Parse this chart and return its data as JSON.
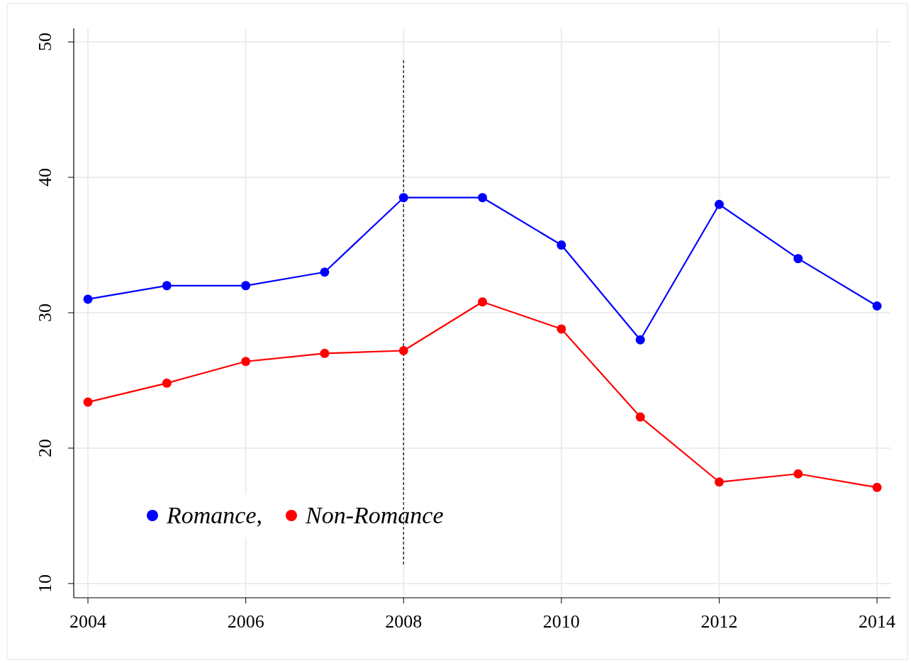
{
  "chart_data": {
    "type": "line",
    "x": [
      2004,
      2005,
      2006,
      2007,
      2008,
      2009,
      2010,
      2011,
      2012,
      2013,
      2014
    ],
    "series": [
      {
        "name": "Romance,",
        "color": "#0000ff",
        "values": [
          31.0,
          32.0,
          32.0,
          33.0,
          38.5,
          38.5,
          35.0,
          28.0,
          38.0,
          34.0,
          30.5
        ]
      },
      {
        "name": "Non-Romance",
        "color": "#ff0000",
        "values": [
          23.4,
          24.8,
          26.4,
          27.0,
          27.2,
          30.8,
          28.8,
          22.3,
          17.5,
          18.1,
          17.1
        ]
      }
    ],
    "xlim": [
      2003.82,
      2014.17
    ],
    "ylim": [
      8.95,
      51.0
    ],
    "xticks": [
      2004,
      2006,
      2008,
      2010,
      2012,
      2014
    ],
    "yticks": [
      10,
      20,
      30,
      40,
      50
    ],
    "ref_lines": [
      {
        "axis": "x",
        "value": 2008,
        "color": "#000000",
        "line_style": "dashed"
      }
    ],
    "grid": true,
    "legend": "bottom left",
    "marker": "circle",
    "line_style": "solid"
  }
}
